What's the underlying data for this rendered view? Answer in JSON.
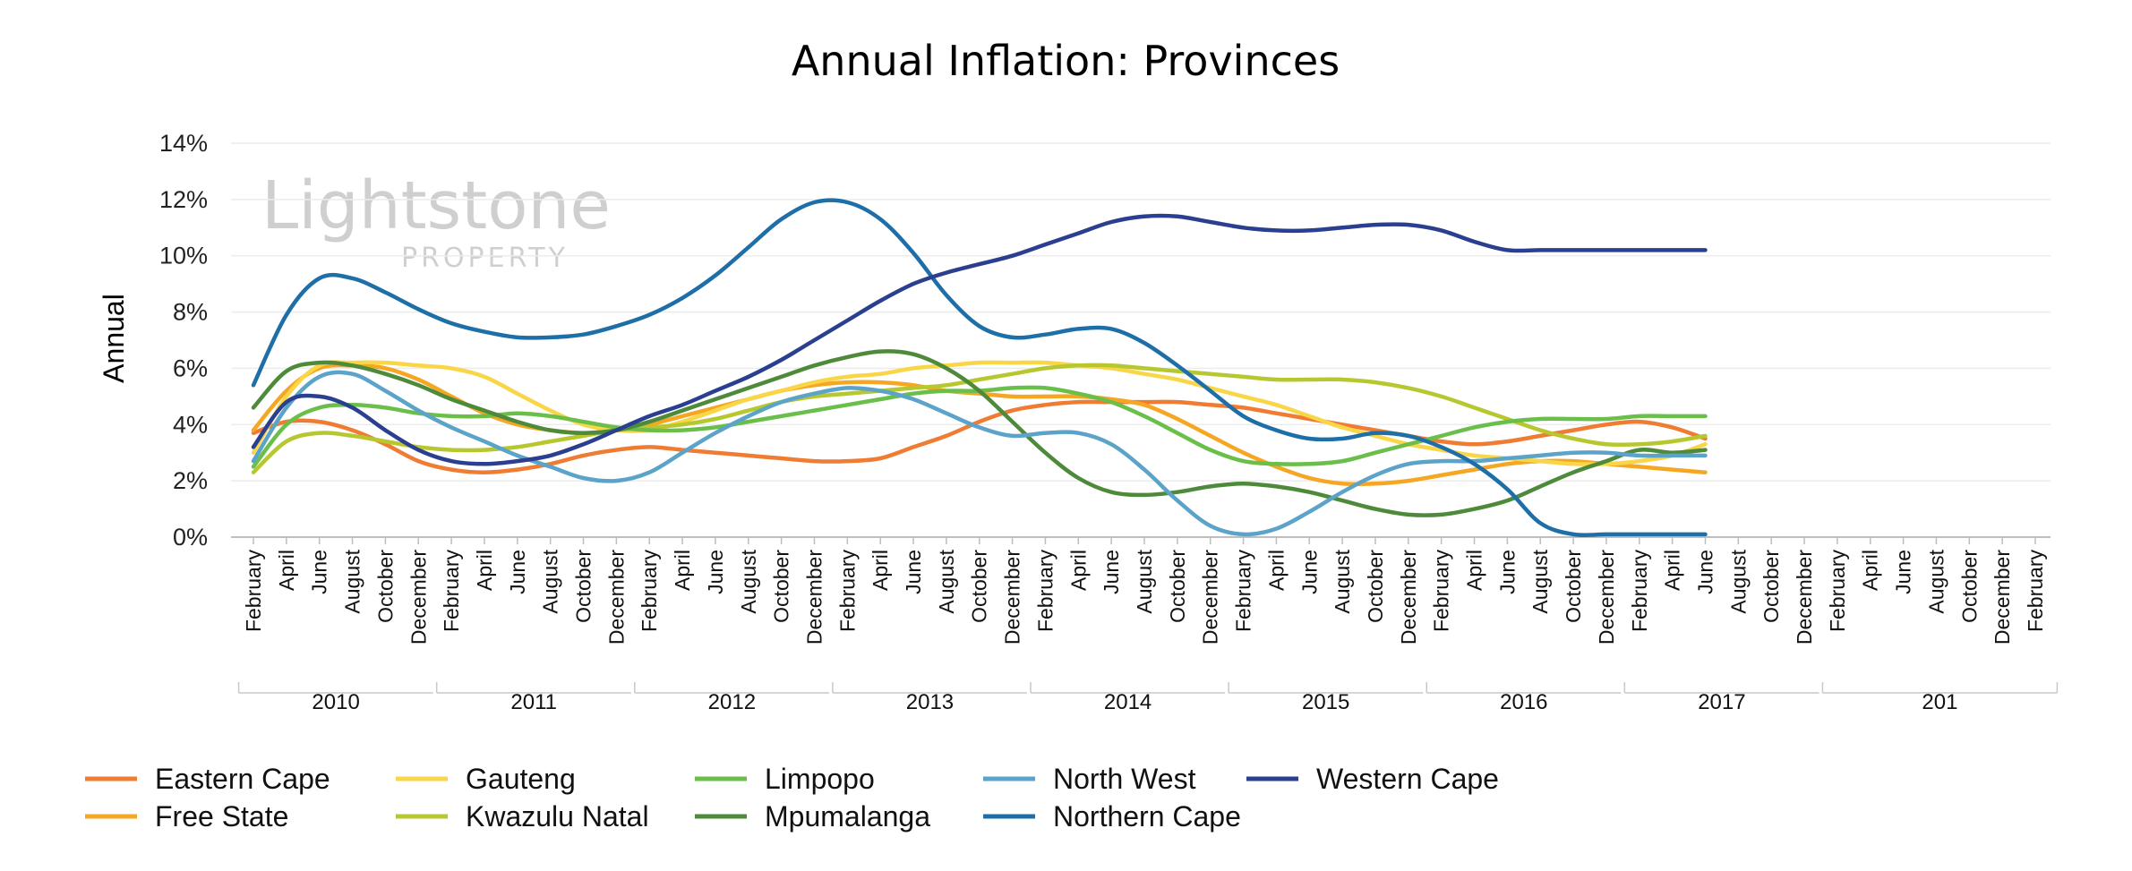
{
  "chart_data": {
    "type": "line",
    "title": "Annual Inflation: Provinces",
    "xlabel": "",
    "ylabel": "Annual",
    "ylim": [
      0,
      14
    ],
    "yticks": [
      "0%",
      "2%",
      "4%",
      "6%",
      "8%",
      "10%",
      "12%",
      "14%"
    ],
    "month_labels": [
      "February",
      "April",
      "June",
      "August",
      "October",
      "December",
      "February",
      "April",
      "June",
      "August",
      "October",
      "December",
      "February",
      "April",
      "June",
      "August",
      "October",
      "December",
      "February",
      "April",
      "June",
      "August",
      "October",
      "December",
      "February",
      "April",
      "June",
      "August",
      "October",
      "December",
      "February",
      "April",
      "June",
      "August",
      "October",
      "December",
      "February",
      "April",
      "June",
      "August",
      "October",
      "December",
      "February",
      "April",
      "June",
      "August",
      "October",
      "December",
      "February",
      "April",
      "June",
      "August",
      "October",
      "December",
      "February"
    ],
    "year_labels": [
      "2010",
      "2011",
      "2012",
      "2013",
      "2014",
      "2015",
      "2016",
      "2017",
      "201"
    ],
    "grid": true,
    "legend_position": "bottom",
    "watermark": {
      "main": "Lightstone",
      "sub": "PROPERTY"
    },
    "series": [
      {
        "name": "Eastern Cape",
        "color": "#ef7c32",
        "values": [
          3.7,
          4.1,
          4.1,
          3.8,
          3.3,
          2.7,
          2.4,
          2.3,
          2.4,
          2.6,
          2.9,
          3.1,
          3.2,
          3.1,
          3.0,
          2.9,
          2.8,
          2.7,
          2.7,
          2.8,
          3.2,
          3.6,
          4.1,
          4.5,
          4.7,
          4.8,
          4.8,
          4.8,
          4.8,
          4.7,
          4.6,
          4.4,
          4.2,
          4.0,
          3.8,
          3.6,
          3.4,
          3.3,
          3.4,
          3.6,
          3.8,
          4.0,
          4.1,
          3.9,
          3.5
        ]
      },
      {
        "name": "Free State",
        "color": "#f5a623",
        "values": [
          3.8,
          5.2,
          6.0,
          6.1,
          6.0,
          5.6,
          5.0,
          4.4,
          4.0,
          3.8,
          3.7,
          3.8,
          4.0,
          4.3,
          4.6,
          4.9,
          5.2,
          5.4,
          5.5,
          5.5,
          5.4,
          5.2,
          5.1,
          5.0,
          5.0,
          5.0,
          4.9,
          4.7,
          4.2,
          3.6,
          3.0,
          2.5,
          2.1,
          1.9,
          1.9,
          2.0,
          2.2,
          2.4,
          2.6,
          2.7,
          2.7,
          2.6,
          2.5,
          2.4,
          2.3
        ]
      },
      {
        "name": "Gauteng",
        "color": "#f9d648",
        "values": [
          3.0,
          5.0,
          6.1,
          6.2,
          6.2,
          6.1,
          6.0,
          5.7,
          5.1,
          4.5,
          4.0,
          3.8,
          3.8,
          4.1,
          4.5,
          4.9,
          5.2,
          5.5,
          5.7,
          5.8,
          6.0,
          6.1,
          6.2,
          6.2,
          6.2,
          6.1,
          6.0,
          5.8,
          5.6,
          5.3,
          5.0,
          4.7,
          4.3,
          3.9,
          3.6,
          3.3,
          3.1,
          2.9,
          2.8,
          2.7,
          2.6,
          2.6,
          2.7,
          2.9,
          3.3
        ]
      },
      {
        "name": "Kwazulu Natal",
        "color": "#b7c730",
        "values": [
          2.3,
          3.4,
          3.7,
          3.6,
          3.4,
          3.2,
          3.1,
          3.1,
          3.2,
          3.4,
          3.6,
          3.8,
          3.9,
          4.0,
          4.2,
          4.5,
          4.8,
          5.0,
          5.1,
          5.2,
          5.3,
          5.4,
          5.6,
          5.8,
          6.0,
          6.1,
          6.1,
          6.0,
          5.9,
          5.8,
          5.7,
          5.6,
          5.6,
          5.6,
          5.5,
          5.3,
          5.0,
          4.6,
          4.2,
          3.8,
          3.5,
          3.3,
          3.3,
          3.4,
          3.6
        ]
      },
      {
        "name": "Limpopo",
        "color": "#6abf4b",
        "values": [
          2.5,
          4.0,
          4.6,
          4.7,
          4.6,
          4.4,
          4.3,
          4.3,
          4.4,
          4.3,
          4.1,
          3.9,
          3.8,
          3.8,
          3.9,
          4.1,
          4.3,
          4.5,
          4.7,
          4.9,
          5.1,
          5.2,
          5.2,
          5.3,
          5.3,
          5.1,
          4.8,
          4.3,
          3.7,
          3.1,
          2.7,
          2.6,
          2.6,
          2.7,
          3.0,
          3.3,
          3.6,
          3.9,
          4.1,
          4.2,
          4.2,
          4.2,
          4.3,
          4.3,
          4.3
        ]
      },
      {
        "name": "Mpumalanga",
        "color": "#4d8a3a",
        "values": [
          4.6,
          5.9,
          6.2,
          6.1,
          5.8,
          5.4,
          4.9,
          4.5,
          4.1,
          3.8,
          3.7,
          3.8,
          4.1,
          4.5,
          4.9,
          5.3,
          5.7,
          6.1,
          6.4,
          6.6,
          6.5,
          6.0,
          5.2,
          4.1,
          3.0,
          2.1,
          1.6,
          1.5,
          1.6,
          1.8,
          1.9,
          1.8,
          1.6,
          1.3,
          1.0,
          0.8,
          0.8,
          1.0,
          1.3,
          1.8,
          2.3,
          2.7,
          3.1,
          3.0,
          3.1
        ]
      },
      {
        "name": "North West",
        "color": "#5ba3c9",
        "values": [
          2.7,
          4.6,
          5.7,
          5.8,
          5.2,
          4.5,
          3.9,
          3.4,
          2.9,
          2.5,
          2.1,
          2.0,
          2.3,
          3.0,
          3.7,
          4.3,
          4.8,
          5.1,
          5.3,
          5.2,
          4.9,
          4.4,
          3.9,
          3.6,
          3.7,
          3.7,
          3.3,
          2.4,
          1.3,
          0.4,
          0.1,
          0.3,
          0.9,
          1.6,
          2.2,
          2.6,
          2.7,
          2.7,
          2.8,
          2.9,
          3.0,
          3.0,
          2.9,
          2.9,
          2.9
        ]
      },
      {
        "name": "Northern Cape",
        "color": "#1e6fa8",
        "values": [
          5.4,
          7.9,
          9.2,
          9.2,
          8.7,
          8.1,
          7.6,
          7.3,
          7.1,
          7.1,
          7.2,
          7.5,
          7.9,
          8.5,
          9.3,
          10.3,
          11.3,
          11.9,
          11.9,
          11.3,
          10.1,
          8.6,
          7.5,
          7.1,
          7.2,
          7.4,
          7.4,
          6.9,
          6.1,
          5.2,
          4.3,
          3.8,
          3.5,
          3.5,
          3.7,
          3.6,
          3.2,
          2.6,
          1.7,
          0.5,
          0.1,
          0.1,
          0.1,
          0.1,
          0.1
        ]
      },
      {
        "name": "Western Cape",
        "color": "#2a3f8f",
        "values": [
          3.2,
          4.8,
          5.0,
          4.6,
          3.8,
          3.1,
          2.7,
          2.6,
          2.7,
          2.9,
          3.3,
          3.8,
          4.3,
          4.7,
          5.2,
          5.7,
          6.3,
          7.0,
          7.7,
          8.4,
          9.0,
          9.4,
          9.7,
          10.0,
          10.4,
          10.8,
          11.2,
          11.4,
          11.4,
          11.2,
          11.0,
          10.9,
          10.9,
          11.0,
          11.1,
          11.1,
          10.9,
          10.5,
          10.2,
          10.2,
          10.2,
          10.2,
          10.2,
          10.2,
          10.2
        ]
      }
    ]
  }
}
